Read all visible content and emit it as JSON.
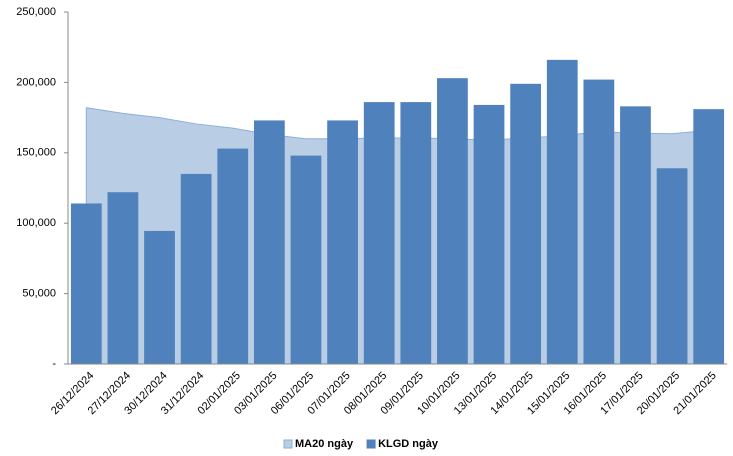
{
  "chart_data": {
    "type": "bar",
    "categories": [
      "26/12/2024",
      "27/12/2024",
      "30/12/2024",
      "31/12/2024",
      "02/01/2025",
      "03/01/2025",
      "06/01/2025",
      "07/01/2025",
      "08/01/2025",
      "09/01/2025",
      "10/01/2025",
      "13/01/2025",
      "14/01/2025",
      "15/01/2025",
      "16/01/2025",
      "17/01/2025",
      "20/01/2025",
      "21/01/2025"
    ],
    "series": [
      {
        "name": "MA20 ngày",
        "type": "area",
        "color": "#b9cde5",
        "values": [
          182000,
          178000,
          175000,
          170500,
          167500,
          163000,
          160000,
          160000,
          160500,
          160500,
          160000,
          159000,
          160500,
          162000,
          165000,
          164000,
          163500,
          166000
        ]
      },
      {
        "name": "KLGD ngày",
        "type": "bar",
        "color": "#4f81bd",
        "values": [
          114000,
          122000,
          94500,
          135000,
          153000,
          173000,
          148000,
          173000,
          186000,
          186000,
          203000,
          184000,
          199000,
          216000,
          202000,
          183000,
          139000,
          181000
        ]
      }
    ],
    "ylim": [
      0,
      250000
    ],
    "yticks": [
      {
        "value": 0,
        "label": "-"
      },
      {
        "value": 50000,
        "label": "50,000"
      },
      {
        "value": 100000,
        "label": "100,000"
      },
      {
        "value": 150000,
        "label": "150,000"
      },
      {
        "value": 200000,
        "label": "200,000"
      },
      {
        "value": 250000,
        "label": "250,000"
      }
    ],
    "legend": "bottom"
  }
}
